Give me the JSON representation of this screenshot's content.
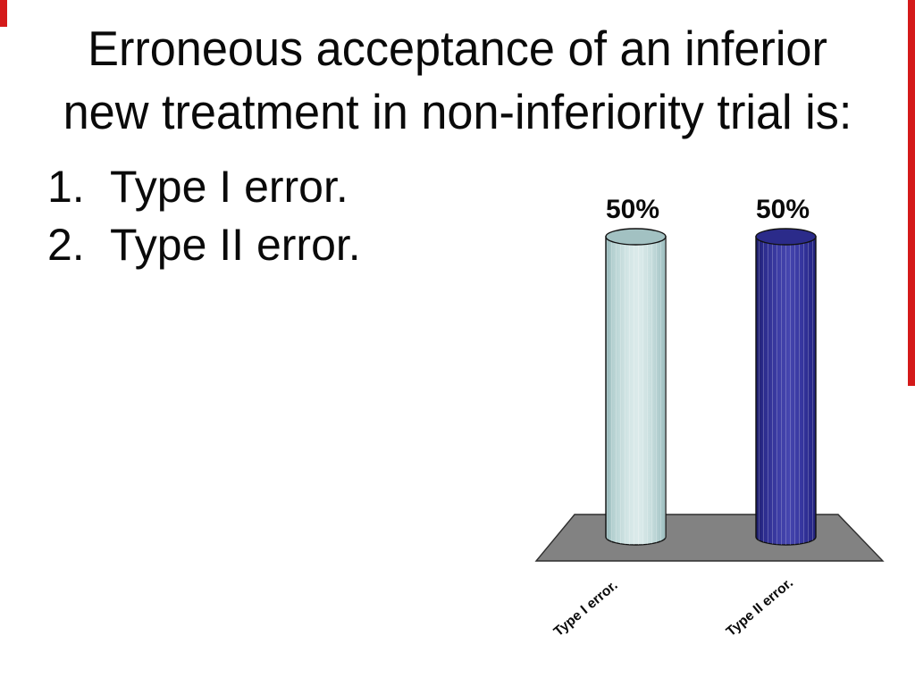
{
  "slide": {
    "title_lines": [
      "Erroneous acceptance of an inferior",
      "new treatment in non-inferiority trial is:"
    ],
    "options": [
      {
        "number": "1.",
        "label": "Type I error."
      },
      {
        "number": "2.",
        "label": "Type II error."
      }
    ]
  },
  "chart_data": {
    "type": "bar",
    "style": "3d-cylinder",
    "categories": [
      "Type I error.",
      "Type II error."
    ],
    "values": [
      50,
      50
    ],
    "value_labels": [
      "50%",
      "50%"
    ],
    "unit": "%",
    "ylim": [
      0,
      50
    ],
    "axes": "none",
    "legend": "none",
    "grid": false,
    "series_colors": [
      "#c9dedd",
      "#3434a0"
    ],
    "floor_color": "#828282",
    "label_color": "#0a0a0a"
  },
  "edge_marks": {
    "color": "#d41a1a"
  }
}
